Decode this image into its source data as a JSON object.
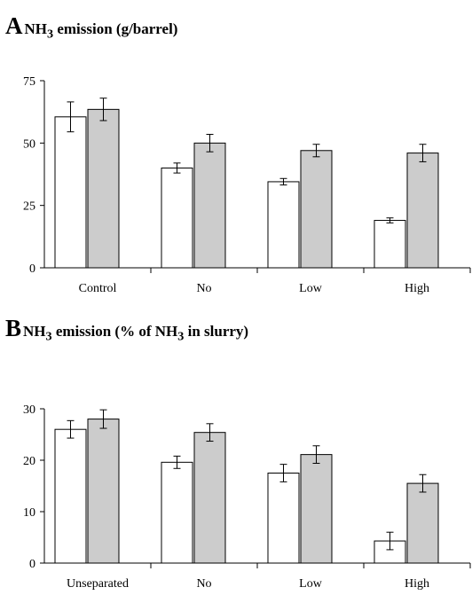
{
  "chart_data": [
    {
      "type": "bar",
      "panel_letter": "A",
      "title_pre": "NH",
      "title_sub": "3",
      "title_post": " emission (g/barrel)",
      "categories": [
        "Control",
        "No",
        "Low",
        "High"
      ],
      "series": [
        {
          "color": "#ffffff",
          "values": [
            60.5,
            40.0,
            34.5,
            19.0
          ],
          "errors": [
            6.0,
            2.0,
            1.3,
            1.0
          ]
        },
        {
          "color": "#cccccc",
          "values": [
            63.5,
            50.0,
            47.0,
            46.0
          ],
          "errors": [
            4.5,
            3.5,
            2.5,
            3.5
          ]
        }
      ],
      "ylim": [
        0,
        75
      ],
      "yticks": [
        0,
        25,
        50,
        75
      ],
      "grid": false
    },
    {
      "type": "bar",
      "panel_letter": "B",
      "title_pre": "NH",
      "title_sub": "3",
      "title_mid": " emission (% of NH",
      "title_sub2": "3",
      "title_post": " in slurry)",
      "categories": [
        "Unseparated",
        "No",
        "Low",
        "High"
      ],
      "series": [
        {
          "color": "#ffffff",
          "values": [
            26.0,
            19.6,
            17.5,
            4.3
          ],
          "errors": [
            1.7,
            1.2,
            1.7,
            1.7
          ]
        },
        {
          "color": "#cccccc",
          "values": [
            28.0,
            25.4,
            21.1,
            15.5
          ],
          "errors": [
            1.8,
            1.7,
            1.7,
            1.7
          ]
        }
      ],
      "ylim": [
        0,
        30
      ],
      "yticks": [
        0,
        10,
        20,
        30
      ],
      "grid": false
    }
  ]
}
